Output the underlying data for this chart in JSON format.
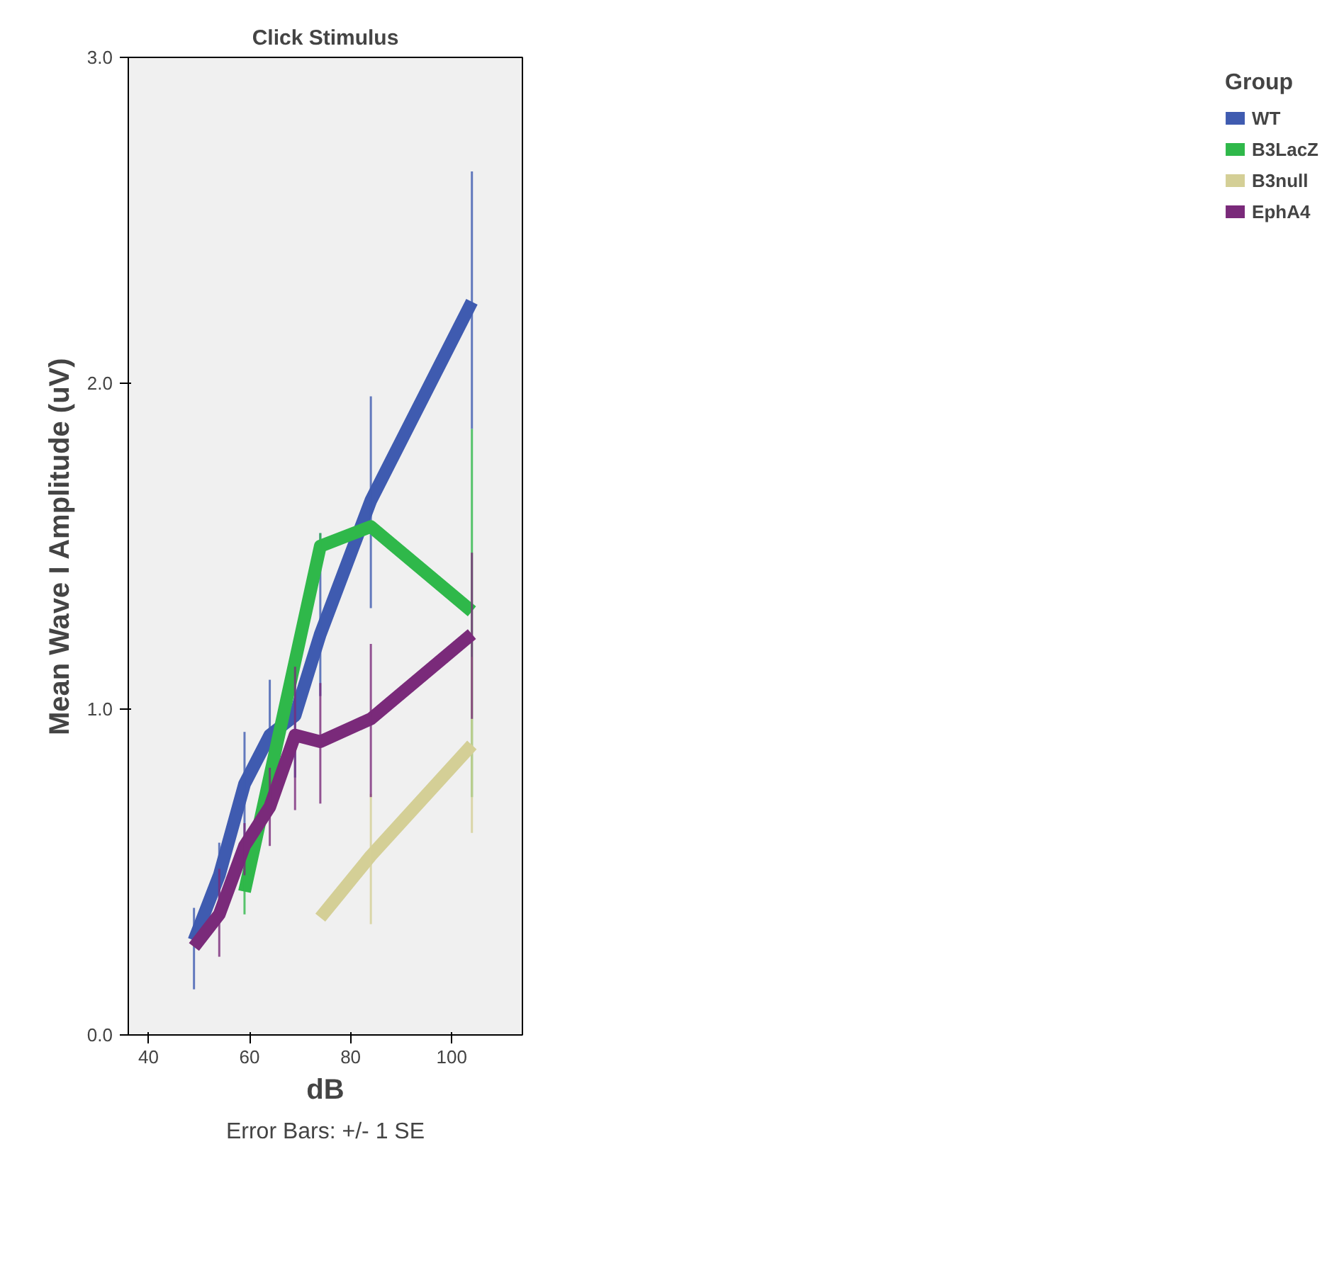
{
  "chart_data": {
    "type": "line",
    "title": "Click Stimulus",
    "xlabel": "dB",
    "ylabel": "Mean Wave I Amplitude (uV)",
    "legend_title": "Group",
    "annotations": [
      "Error Bars: +/- 1 SE"
    ],
    "xlim": [
      36,
      114
    ],
    "xticks": [
      40,
      60,
      80,
      100
    ],
    "ylim": [
      0,
      3
    ],
    "yticks": [
      {
        "value": 0,
        "label": "0.0"
      },
      {
        "value": 1,
        "label": "1.0"
      },
      {
        "value": 2,
        "label": "2.0"
      },
      {
        "value": 3,
        "label": "3.0"
      }
    ],
    "grid": false,
    "legend": "right",
    "marker": "none",
    "line_style": "solid",
    "series": [
      {
        "name": "WT",
        "color": "#3f5bb0",
        "x": [
          49,
          54,
          59,
          64,
          69,
          74,
          84,
          104
        ],
        "values": [
          0.29,
          0.49,
          0.77,
          0.92,
          0.98,
          1.23,
          1.64,
          2.25
        ],
        "errors": [
          [
            0.14,
            0.39
          ],
          [
            0.39,
            0.59
          ],
          [
            0.61,
            0.93
          ],
          [
            0.75,
            1.09
          ],
          [
            0.79,
            1.17
          ],
          [
            1.04,
            1.54
          ],
          [
            1.31,
            1.96
          ],
          [
            1.86,
            2.65
          ]
        ]
      },
      {
        "name": "B3LacZ",
        "color": "#2fb84a",
        "x": [
          59,
          74,
          84,
          104
        ],
        "values": [
          0.44,
          1.5,
          1.56,
          1.3
        ],
        "errors": [
          [
            0.37,
            0.51
          ],
          [
            1.46,
            1.54
          ],
          null,
          [
            0.73,
            1.86
          ]
        ]
      },
      {
        "name": "B3null",
        "color": "#d4cf96",
        "x": [
          74,
          84,
          104
        ],
        "values": [
          0.36,
          0.55,
          0.89
        ],
        "errors": [
          null,
          [
            0.34,
            0.74
          ],
          [
            0.62,
            1.16
          ]
        ]
      },
      {
        "name": "EphA4",
        "color": "#7a2a7a",
        "x": [
          49,
          54,
          59,
          64,
          69,
          74,
          84,
          104
        ],
        "values": [
          0.27,
          0.37,
          0.58,
          0.7,
          0.92,
          0.9,
          0.97,
          1.23
        ],
        "errors": [
          null,
          [
            0.24,
            0.51
          ],
          [
            0.49,
            0.65
          ],
          [
            0.58,
            0.82
          ],
          [
            0.69,
            1.13
          ],
          [
            0.71,
            1.08
          ],
          [
            0.73,
            1.2
          ],
          [
            0.97,
            1.48
          ]
        ]
      }
    ]
  }
}
